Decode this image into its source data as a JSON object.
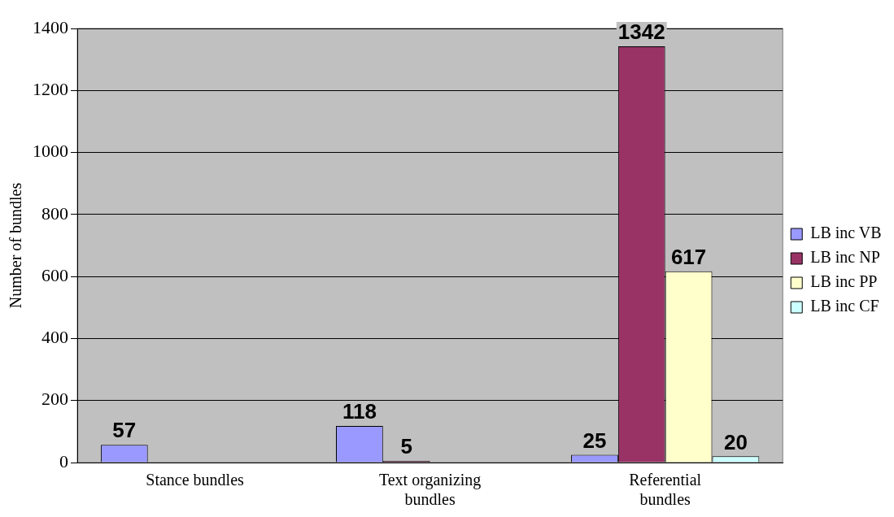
{
  "chart_data": {
    "type": "bar",
    "ylabel": "Number of bundles",
    "categories": [
      "Stance bundles",
      "Text organizing bundles",
      "Referential bundles"
    ],
    "series": [
      {
        "name": "LB inc VB",
        "color": "#9999ff",
        "values": [
          57,
          118,
          25
        ]
      },
      {
        "name": "LB inc NP",
        "color": "#993366",
        "values": [
          null,
          5,
          1342
        ]
      },
      {
        "name": "LB inc PP",
        "color": "#ffffcc",
        "values": [
          null,
          null,
          617
        ]
      },
      {
        "name": "LB inc CF",
        "color": "#ccffff",
        "values": [
          null,
          null,
          20
        ]
      }
    ],
    "ylim": [
      0,
      1400
    ],
    "yticks": [
      0,
      200,
      400,
      600,
      800,
      1000,
      1200,
      1400
    ],
    "grid": "y",
    "legend": "right",
    "data_labels": true
  }
}
